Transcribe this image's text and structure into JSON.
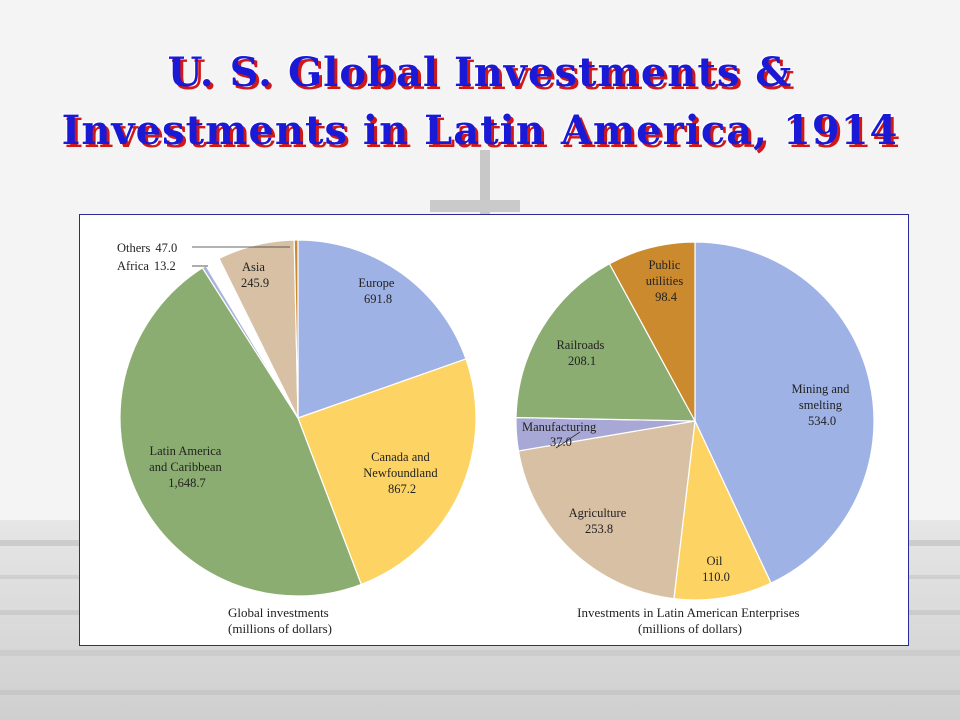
{
  "title": {
    "line1": "U. S. Global Investments &",
    "line2": "Investments in Latin America, 1914"
  },
  "colors": {
    "title_text": "#1a1ad6",
    "title_shadow": "#d01818",
    "panel_border": "#2a2a9a"
  },
  "chart_data": [
    {
      "type": "pie",
      "caption": [
        "Global investments",
        "(millions of dollars)"
      ],
      "slices": [
        {
          "name": "Europe",
          "display": "691.8",
          "value": 691.8,
          "color": "#9fb2e6"
        },
        {
          "name": "Canada and Newfoundland",
          "display": "867.2",
          "value": 867.2,
          "color": "#fdd464"
        },
        {
          "name": "Latin America and Caribbean",
          "display": "1,648.7",
          "value": 1648.7,
          "color": "#8cad72"
        },
        {
          "name": "Africa",
          "display": "13.2",
          "value": 13.2,
          "color": "#a8b4dc"
        },
        {
          "name": "Others",
          "display": "47.0",
          "value": 47.0,
          "color": "#ffffff"
        },
        {
          "name": "Asia",
          "display": "245.9",
          "value": 245.9,
          "color": "#d8c0a4"
        },
        {
          "name": "",
          "display": "",
          "value": 12.0,
          "color": "#cc8a2e"
        }
      ]
    },
    {
      "type": "pie",
      "caption": [
        "Investments in Latin American Enterprises",
        "(millions of dollars)"
      ],
      "slices": [
        {
          "name": "Mining and smelting",
          "display": "534.0",
          "value": 534.0,
          "color": "#9fb2e6"
        },
        {
          "name": "Oil",
          "display": "110.0",
          "value": 110.0,
          "color": "#fdd464"
        },
        {
          "name": "Agriculture",
          "display": "253.8",
          "value": 253.8,
          "color": "#d8c0a4"
        },
        {
          "name": "Manufacturing",
          "display": "37.0",
          "value": 37.0,
          "color": "#a8a8d6"
        },
        {
          "name": "Railroads",
          "display": "208.1",
          "value": 208.1,
          "color": "#8cad72"
        },
        {
          "name": "Public utilities",
          "display": "98.4",
          "value": 98.4,
          "color": "#cc8a2e"
        }
      ]
    }
  ]
}
